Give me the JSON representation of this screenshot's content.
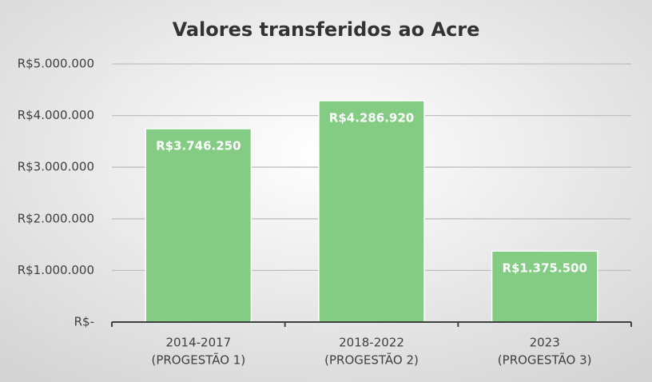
{
  "chart_data": {
    "type": "bar",
    "title": "Valores transferidos ao Acre",
    "categories": [
      [
        "2014-2017",
        "(PROGESTÃO 1)"
      ],
      [
        "2018-2022",
        "(PROGESTÃO 2)"
      ],
      [
        "2023",
        "(PROGESTÃO 3)"
      ]
    ],
    "values": [
      3746250,
      4286920,
      1375500
    ],
    "value_labels": [
      "R$3.746.250",
      "R$4.286.920",
      "R$1.375.500"
    ],
    "color": "#84cc84",
    "ylim": [
      0,
      5000000
    ],
    "yticks": [
      {
        "value": 0,
        "label": "R$-"
      },
      {
        "value": 1000000,
        "label": "R$1.000.000"
      },
      {
        "value": 2000000,
        "label": "R$2.000.000"
      },
      {
        "value": 3000000,
        "label": "R$3.000.000"
      },
      {
        "value": 4000000,
        "label": "R$4.000.000"
      },
      {
        "value": 5000000,
        "label": "R$5.000.000"
      }
    ],
    "grid": true
  }
}
